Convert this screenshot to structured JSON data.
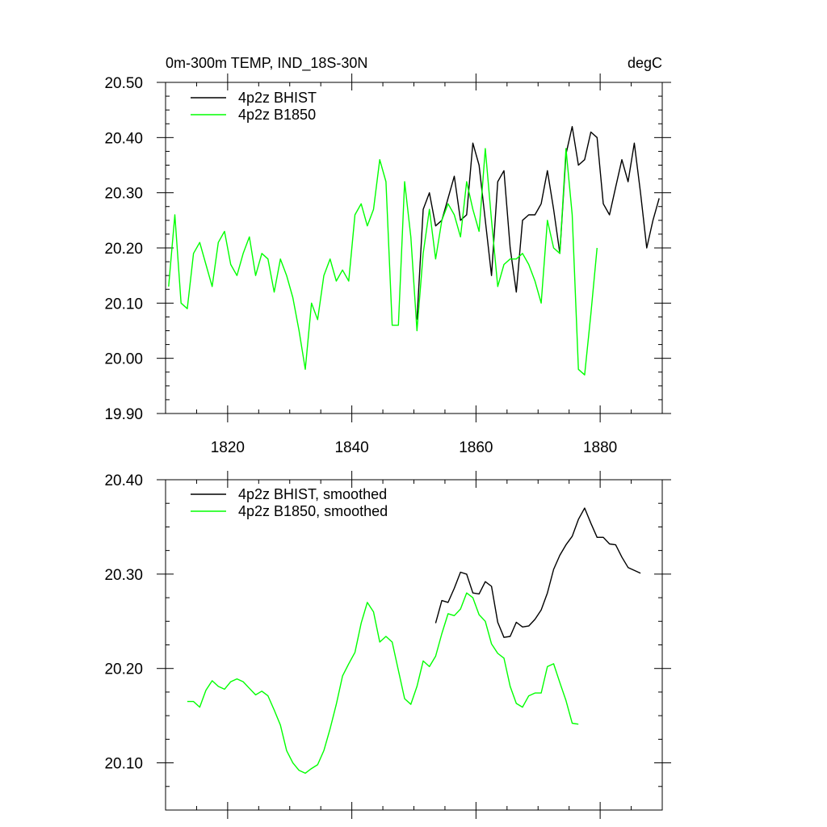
{
  "chart_data": [
    {
      "type": "line",
      "title": "0m-300m TEMP, IND_18S-30N",
      "units": "degC",
      "xlabel": "",
      "ylabel": "",
      "xlim": [
        1810,
        1890
      ],
      "ylim": [
        19.9,
        20.5
      ],
      "x_ticks": [
        1820,
        1840,
        1860,
        1880
      ],
      "x_tick_labels": [
        "1820",
        "1840",
        "1860",
        "1880"
      ],
      "y_ticks": [
        19.9,
        20.0,
        20.1,
        20.2,
        20.3,
        20.4,
        20.5
      ],
      "y_tick_labels": [
        "19.90",
        "20.00",
        "20.10",
        "20.20",
        "20.30",
        "20.40",
        "20.50"
      ],
      "grid": false,
      "legend_position": "top-left",
      "series": [
        {
          "name": "4p2z BHIST",
          "color": "#000000",
          "x": [
            1850.5,
            1851.5,
            1852.5,
            1853.5,
            1854.5,
            1855.5,
            1856.5,
            1857.5,
            1858.5,
            1859.5,
            1860.5,
            1861.5,
            1862.5,
            1863.5,
            1864.5,
            1865.5,
            1866.5,
            1867.5,
            1868.5,
            1869.5,
            1870.5,
            1871.5,
            1872.5,
            1873.5,
            1874.5,
            1875.5,
            1876.5,
            1877.5,
            1878.5,
            1879.5,
            1880.5,
            1881.5,
            1882.5,
            1883.5,
            1884.5,
            1885.5,
            1886.5,
            1887.5,
            1888.5,
            1889.5
          ],
          "y": [
            20.07,
            20.27,
            20.3,
            20.24,
            20.25,
            20.29,
            20.33,
            20.25,
            20.26,
            20.39,
            20.35,
            20.25,
            20.15,
            20.32,
            20.34,
            20.2,
            20.12,
            20.25,
            20.26,
            20.26,
            20.28,
            20.34,
            20.27,
            20.19,
            20.37,
            20.42,
            20.35,
            20.36,
            20.41,
            20.4,
            20.28,
            20.26,
            20.31,
            20.36,
            20.32,
            20.39,
            20.3,
            20.2,
            20.25,
            20.29
          ]
        },
        {
          "name": "4p2z B1850",
          "color": "#00ff00",
          "x": [
            1810.5,
            1811.5,
            1812.5,
            1813.5,
            1814.5,
            1815.5,
            1816.5,
            1817.5,
            1818.5,
            1819.5,
            1820.5,
            1821.5,
            1822.5,
            1823.5,
            1824.5,
            1825.5,
            1826.5,
            1827.5,
            1828.5,
            1829.5,
            1830.5,
            1831.5,
            1832.5,
            1833.5,
            1834.5,
            1835.5,
            1836.5,
            1837.5,
            1838.5,
            1839.5,
            1840.5,
            1841.5,
            1842.5,
            1843.5,
            1844.5,
            1845.5,
            1846.5,
            1847.5,
            1848.5,
            1849.5,
            1850.5,
            1851.5,
            1852.5,
            1853.5,
            1854.5,
            1855.5,
            1856.5,
            1857.5,
            1858.5,
            1859.5,
            1860.5,
            1861.5,
            1862.5,
            1863.5,
            1864.5,
            1865.5,
            1866.5,
            1867.5,
            1868.5,
            1869.5,
            1870.5,
            1871.5,
            1872.5,
            1873.5,
            1874.5,
            1875.5,
            1876.5,
            1877.5,
            1878.5,
            1879.5
          ],
          "y": [
            20.13,
            20.26,
            20.1,
            20.09,
            20.19,
            20.21,
            20.17,
            20.13,
            20.21,
            20.23,
            20.17,
            20.15,
            20.19,
            20.22,
            20.15,
            20.19,
            20.18,
            20.12,
            20.18,
            20.15,
            20.11,
            20.05,
            19.98,
            20.1,
            20.07,
            20.15,
            20.18,
            20.14,
            20.16,
            20.14,
            20.26,
            20.28,
            20.24,
            20.27,
            20.36,
            20.32,
            20.06,
            20.06,
            20.32,
            20.22,
            20.05,
            20.19,
            20.27,
            20.18,
            20.25,
            20.28,
            20.26,
            20.22,
            20.32,
            20.27,
            20.23,
            20.38,
            20.25,
            20.13,
            20.17,
            20.18,
            20.18,
            20.19,
            20.17,
            20.14,
            20.1,
            20.25,
            20.2,
            20.19,
            20.38,
            20.26,
            19.98,
            19.97,
            20.08,
            20.2
          ]
        }
      ]
    },
    {
      "type": "line",
      "title": "",
      "xlabel": "",
      "ylabel": "",
      "xlim": [
        1810,
        1890
      ],
      "ylim": [
        20.05,
        20.4
      ],
      "x_ticks": [
        1820,
        1840,
        1860,
        1880
      ],
      "x_tick_labels": [],
      "y_ticks": [
        20.1,
        20.2,
        20.3,
        20.4
      ],
      "y_tick_labels": [
        "20.10",
        "20.20",
        "20.30",
        "20.40"
      ],
      "grid": false,
      "legend_position": "top-left",
      "series": [
        {
          "name": "4p2z BHIST, smoothed",
          "color": "#000000",
          "x": [
            1853.5,
            1854.5,
            1855.5,
            1856.5,
            1857.5,
            1858.5,
            1859.5,
            1860.5,
            1861.5,
            1862.5,
            1863.5,
            1864.5,
            1865.5,
            1866.5,
            1867.5,
            1868.5,
            1869.5,
            1870.5,
            1871.5,
            1872.5,
            1873.5,
            1874.5,
            1875.5,
            1876.5,
            1877.5,
            1878.5,
            1879.5,
            1880.5,
            1881.5,
            1882.5,
            1883.5,
            1884.5,
            1885.5,
            1886.5
          ],
          "y": [
            20.248,
            20.272,
            20.27,
            20.285,
            20.302,
            20.3,
            20.28,
            20.279,
            20.292,
            20.287,
            20.249,
            20.233,
            20.234,
            20.249,
            20.244,
            20.245,
            20.252,
            20.262,
            20.28,
            20.305,
            20.32,
            20.331,
            20.34,
            20.358,
            20.37,
            20.354,
            20.339,
            20.339,
            20.332,
            20.331,
            20.318,
            20.307,
            20.304,
            20.301
          ]
        },
        {
          "name": "4p2z B1850, smoothed",
          "color": "#00ff00",
          "x": [
            1813.5,
            1814.5,
            1815.5,
            1816.5,
            1817.5,
            1818.5,
            1819.5,
            1820.5,
            1821.5,
            1822.5,
            1823.5,
            1824.5,
            1825.5,
            1826.5,
            1827.5,
            1828.5,
            1829.5,
            1830.5,
            1831.5,
            1832.5,
            1833.5,
            1834.5,
            1835.5,
            1836.5,
            1837.5,
            1838.5,
            1839.5,
            1840.5,
            1841.5,
            1842.5,
            1843.5,
            1844.5,
            1845.5,
            1846.5,
            1847.5,
            1848.5,
            1849.5,
            1850.5,
            1851.5,
            1852.5,
            1853.5,
            1854.5,
            1855.5,
            1856.5,
            1857.5,
            1858.5,
            1859.5,
            1860.5,
            1861.5,
            1862.5,
            1863.5,
            1864.5,
            1865.5,
            1866.5,
            1867.5,
            1868.5,
            1869.5,
            1870.5,
            1871.5,
            1872.5,
            1873.5,
            1874.5,
            1875.5,
            1876.5
          ],
          "y": [
            20.165,
            20.165,
            20.159,
            20.177,
            20.187,
            20.181,
            20.178,
            20.186,
            20.189,
            20.186,
            20.179,
            20.172,
            20.176,
            20.171,
            20.156,
            20.14,
            20.113,
            20.1,
            20.092,
            20.089,
            20.094,
            20.098,
            20.113,
            20.136,
            20.162,
            20.192,
            20.205,
            20.217,
            20.248,
            20.27,
            20.26,
            20.228,
            20.234,
            20.228,
            20.198,
            20.168,
            20.162,
            20.181,
            20.208,
            20.202,
            20.213,
            20.237,
            20.258,
            20.256,
            20.263,
            20.28,
            20.275,
            20.257,
            20.25,
            20.226,
            20.216,
            20.211,
            20.181,
            20.163,
            20.159,
            20.171,
            20.174,
            20.174,
            20.202,
            20.205,
            20.185,
            20.166,
            20.142,
            20.141
          ]
        }
      ]
    }
  ]
}
